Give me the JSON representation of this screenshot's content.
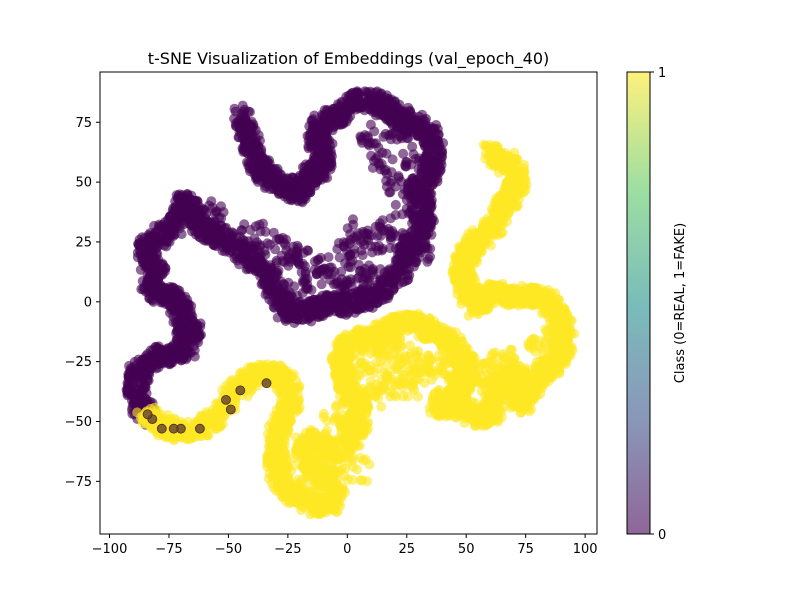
{
  "chart_data": {
    "type": "scatter",
    "title": "t-SNE Visualization of Embeddings (val_epoch_40)",
    "xlabel": "",
    "ylabel": "",
    "xlim": [
      -104,
      105
    ],
    "ylim": [
      -97,
      96
    ],
    "xticks": [
      -100,
      -75,
      -50,
      -25,
      0,
      25,
      50,
      75,
      100
    ],
    "yticks": [
      -75,
      -50,
      -25,
      0,
      25,
      50,
      75
    ],
    "grid": false,
    "alpha": 0.6,
    "colorbar": {
      "label": "Class (0=REAL, 1=FAKE)",
      "ticks": [
        "0",
        "1"
      ],
      "range": [
        0,
        1
      ],
      "colormap": "viridis"
    },
    "series": [
      {
        "class": 0,
        "color": "#440154",
        "path": [
          [
            -45,
            78
          ],
          [
            -43,
            73
          ],
          [
            -41,
            68
          ],
          [
            -40,
            63
          ],
          [
            -38,
            58
          ],
          [
            -35,
            55
          ],
          [
            -33,
            52
          ],
          [
            -29,
            50
          ],
          [
            -25,
            47
          ],
          [
            -22,
            45
          ],
          [
            -20,
            48
          ],
          [
            -17,
            50
          ],
          [
            -15,
            54
          ],
          [
            -12,
            55
          ],
          [
            -10,
            57
          ],
          [
            -10,
            63
          ],
          [
            -13,
            68
          ],
          [
            -12,
            73
          ],
          [
            -8,
            76
          ],
          [
            -4,
            78
          ],
          [
            0,
            82
          ],
          [
            5,
            85
          ],
          [
            10,
            84
          ],
          [
            15,
            82
          ],
          [
            18,
            80
          ],
          [
            23,
            77
          ],
          [
            25,
            72
          ],
          [
            28,
            75
          ],
          [
            33,
            72
          ],
          [
            36,
            67
          ],
          [
            37,
            60
          ],
          [
            35,
            55
          ],
          [
            32,
            50
          ],
          [
            28,
            46
          ],
          [
            32,
            42
          ],
          [
            30,
            35
          ],
          [
            33,
            30
          ],
          [
            28,
            25
          ],
          [
            25,
            20
          ],
          [
            23,
            15
          ],
          [
            20,
            10
          ],
          [
            15,
            5
          ],
          [
            10,
            2
          ],
          [
            5,
            0
          ],
          [
            0,
            -2
          ],
          [
            -5,
            0
          ],
          [
            -10,
            -2
          ],
          [
            -15,
            -3
          ],
          [
            -20,
            -5
          ],
          [
            -25,
            -4
          ],
          [
            -28,
            0
          ],
          [
            -30,
            5
          ],
          [
            -33,
            10
          ],
          [
            -35,
            15
          ],
          [
            -40,
            18
          ],
          [
            -45,
            22
          ],
          [
            -50,
            25
          ],
          [
            -55,
            28
          ],
          [
            -60,
            30
          ],
          [
            -63,
            33
          ],
          [
            -65,
            38
          ],
          [
            -67,
            42
          ],
          [
            -70,
            40
          ],
          [
            -72,
            33
          ],
          [
            -77,
            30
          ],
          [
            -80,
            25
          ],
          [
            -85,
            22
          ],
          [
            -83,
            17
          ],
          [
            -80,
            12
          ],
          [
            -83,
            7
          ],
          [
            -80,
            4
          ],
          [
            -75,
            3
          ],
          [
            -72,
            0
          ],
          [
            -70,
            -3
          ],
          [
            -68,
            -8
          ],
          [
            -65,
            -12
          ],
          [
            -68,
            -15
          ],
          [
            -68,
            -20
          ],
          [
            -72,
            -22
          ],
          [
            -77,
            -22
          ],
          [
            -80,
            -24
          ],
          [
            -85,
            -26
          ],
          [
            -88,
            -30
          ],
          [
            -89,
            -35
          ],
          [
            -88,
            -40
          ],
          [
            -86,
            -45
          ],
          [
            -83,
            -48
          ]
        ],
        "path_extra": [
          [
            0,
            20
          ],
          [
            5,
            15
          ],
          [
            10,
            25
          ],
          [
            5,
            30
          ],
          [
            15,
            30
          ],
          [
            -5,
            10
          ],
          [
            0,
            5
          ],
          [
            10,
            10
          ],
          [
            22,
            25
          ],
          [
            30,
            20
          ],
          [
            25,
            40
          ],
          [
            20,
            50
          ],
          [
            15,
            60
          ],
          [
            10,
            70
          ],
          [
            -15,
            10
          ],
          [
            -20,
            20
          ],
          [
            -25,
            20
          ],
          [
            -30,
            25
          ],
          [
            -40,
            28
          ],
          [
            -55,
            35
          ],
          [
            -60,
            38
          ],
          [
            28,
            60
          ],
          [
            20,
            72
          ],
          [
            -20,
            5
          ],
          [
            -10,
            15
          ]
        ],
        "outliers": [
          [
            -51,
            -41
          ],
          [
            -49,
            -45
          ],
          [
            -45,
            -37
          ],
          [
            -34,
            -34
          ],
          [
            -62,
            -53
          ],
          [
            -70,
            -53
          ],
          [
            -73,
            -53
          ],
          [
            -78,
            -53
          ],
          [
            -82,
            -49
          ],
          [
            -84,
            -47
          ]
        ]
      },
      {
        "class": 1,
        "color": "#fde725",
        "path": [
          [
            -85,
            -47
          ],
          [
            -81,
            -50
          ],
          [
            -77,
            -52
          ],
          [
            -72,
            -54
          ],
          [
            -66,
            -54
          ],
          [
            -60,
            -52
          ],
          [
            -55,
            -48
          ],
          [
            -50,
            -42
          ],
          [
            -46,
            -37
          ],
          [
            -42,
            -33
          ],
          [
            -37,
            -30
          ],
          [
            -32,
            -30
          ],
          [
            -27,
            -32
          ],
          [
            -24,
            -37
          ],
          [
            -24,
            -45
          ],
          [
            -27,
            -50
          ],
          [
            -29,
            -55
          ],
          [
            -30,
            -60
          ],
          [
            -30,
            -66
          ],
          [
            -29,
            -72
          ],
          [
            -26,
            -77
          ],
          [
            -22,
            -80
          ],
          [
            -18,
            -82
          ],
          [
            -13,
            -85
          ],
          [
            -8,
            -85
          ],
          [
            -4,
            -80
          ],
          [
            -8,
            -75
          ],
          [
            -13,
            -72
          ],
          [
            -17,
            -66
          ],
          [
            -18,
            -60
          ],
          [
            -15,
            -57
          ],
          [
            -10,
            -60
          ],
          [
            -5,
            -63
          ],
          [
            0,
            -60
          ],
          [
            3,
            -55
          ],
          [
            5,
            -50
          ],
          [
            5,
            -45
          ],
          [
            2,
            -40
          ],
          [
            0,
            -35
          ],
          [
            -2,
            -30
          ],
          [
            -3,
            -25
          ],
          [
            -1,
            -20
          ],
          [
            2,
            -18
          ],
          [
            5,
            -15
          ],
          [
            10,
            -14
          ],
          [
            15,
            -13
          ],
          [
            20,
            -10
          ],
          [
            25,
            -8
          ],
          [
            30,
            -10
          ],
          [
            35,
            -12
          ],
          [
            40,
            -15
          ],
          [
            45,
            -18
          ],
          [
            48,
            -22
          ],
          [
            50,
            -25
          ],
          [
            50,
            -30
          ],
          [
            48,
            -35
          ],
          [
            45,
            -40
          ],
          [
            42,
            -43
          ],
          [
            38,
            -45
          ],
          [
            40,
            -40
          ],
          [
            45,
            -42
          ],
          [
            50,
            -45
          ],
          [
            55,
            -48
          ],
          [
            60,
            -48
          ],
          [
            62,
            -43
          ],
          [
            62,
            -38
          ],
          [
            65,
            -33
          ],
          [
            68,
            -30
          ],
          [
            72,
            -32
          ],
          [
            72,
            -38
          ],
          [
            72,
            -43
          ],
          [
            75,
            -40
          ],
          [
            78,
            -33
          ],
          [
            82,
            -30
          ],
          [
            85,
            -28
          ],
          [
            88,
            -25
          ],
          [
            90,
            -20
          ],
          [
            92,
            -15
          ],
          [
            90,
            -10
          ],
          [
            88,
            -5
          ],
          [
            85,
            0
          ],
          [
            80,
            2
          ],
          [
            75,
            3
          ],
          [
            70,
            2
          ],
          [
            65,
            3
          ],
          [
            60,
            4
          ],
          [
            57,
            2
          ],
          [
            55,
            -2
          ],
          [
            52,
            2
          ],
          [
            50,
            6
          ],
          [
            49,
            10
          ],
          [
            48,
            14
          ],
          [
            50,
            18
          ],
          [
            52,
            22
          ],
          [
            55,
            25
          ],
          [
            58,
            28
          ],
          [
            62,
            33
          ],
          [
            65,
            38
          ],
          [
            68,
            42
          ],
          [
            70,
            46
          ],
          [
            72,
            50
          ],
          [
            71,
            55
          ],
          [
            67,
            58
          ],
          [
            63,
            61
          ],
          [
            60,
            62
          ]
        ],
        "path_extra": [
          [
            5,
            -30
          ],
          [
            10,
            -25
          ],
          [
            15,
            -20
          ],
          [
            20,
            -20
          ],
          [
            25,
            -22
          ],
          [
            30,
            -25
          ],
          [
            20,
            -30
          ],
          [
            15,
            -35
          ],
          [
            10,
            -40
          ],
          [
            5,
            -38
          ],
          [
            25,
            -35
          ],
          [
            30,
            -30
          ],
          [
            35,
            -25
          ],
          [
            40,
            -28
          ],
          [
            55,
            -35
          ],
          [
            60,
            -30
          ],
          [
            65,
            -25
          ],
          [
            70,
            -25
          ],
          [
            80,
            -20
          ],
          [
            85,
            -15
          ],
          [
            45,
            -30
          ],
          [
            -10,
            -70
          ],
          [
            -5,
            -68
          ],
          [
            -20,
            -70
          ],
          [
            5,
            -70
          ],
          [
            -5,
            -50
          ],
          [
            0,
            -45
          ]
        ]
      }
    ]
  }
}
